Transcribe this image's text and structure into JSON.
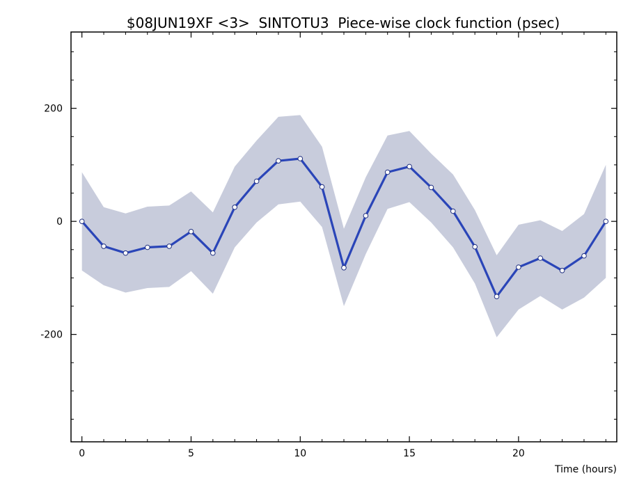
{
  "chart_data": {
    "type": "line",
    "title": "$08JUN19XF <3>  SINTOTU3  Piece-wise clock function (psec)",
    "xlabel": "Time (hours)",
    "ylabel": "",
    "xlim": [
      -0.5,
      24.5
    ],
    "ylim": [
      -390,
      335
    ],
    "xticks": [
      0,
      5,
      10,
      15,
      20
    ],
    "yticks": [
      -200,
      0,
      200
    ],
    "grid": false,
    "series": [
      {
        "color": "#2a45b8",
        "x": [
          0,
          1,
          2,
          3,
          4,
          5,
          6,
          7,
          8,
          9,
          10,
          11,
          12,
          13,
          14,
          15,
          16,
          17,
          18,
          19,
          20,
          21,
          22,
          23,
          24
        ],
        "values": [
          0,
          -44,
          -56,
          -46,
          -44,
          -18,
          -56,
          25,
          71,
          107,
          111,
          61,
          -82,
          10,
          87,
          97,
          60,
          18,
          -45,
          -133,
          -81,
          -65,
          -87,
          -61,
          0
        ],
        "band_upper": [
          87,
          25,
          14,
          26,
          28,
          53,
          16,
          97,
          143,
          185,
          188,
          132,
          -13,
          78,
          152,
          160,
          120,
          83,
          20,
          -60,
          -6,
          2,
          -17,
          13,
          100
        ],
        "band_lower": [
          -87,
          -113,
          -126,
          -118,
          -116,
          -88,
          -128,
          -46,
          -2,
          30,
          35,
          -10,
          -150,
          -58,
          22,
          34,
          -2,
          -46,
          -110,
          -205,
          -156,
          -132,
          -156,
          -135,
          -100
        ],
        "band_color": "#c8ccdc"
      }
    ]
  }
}
